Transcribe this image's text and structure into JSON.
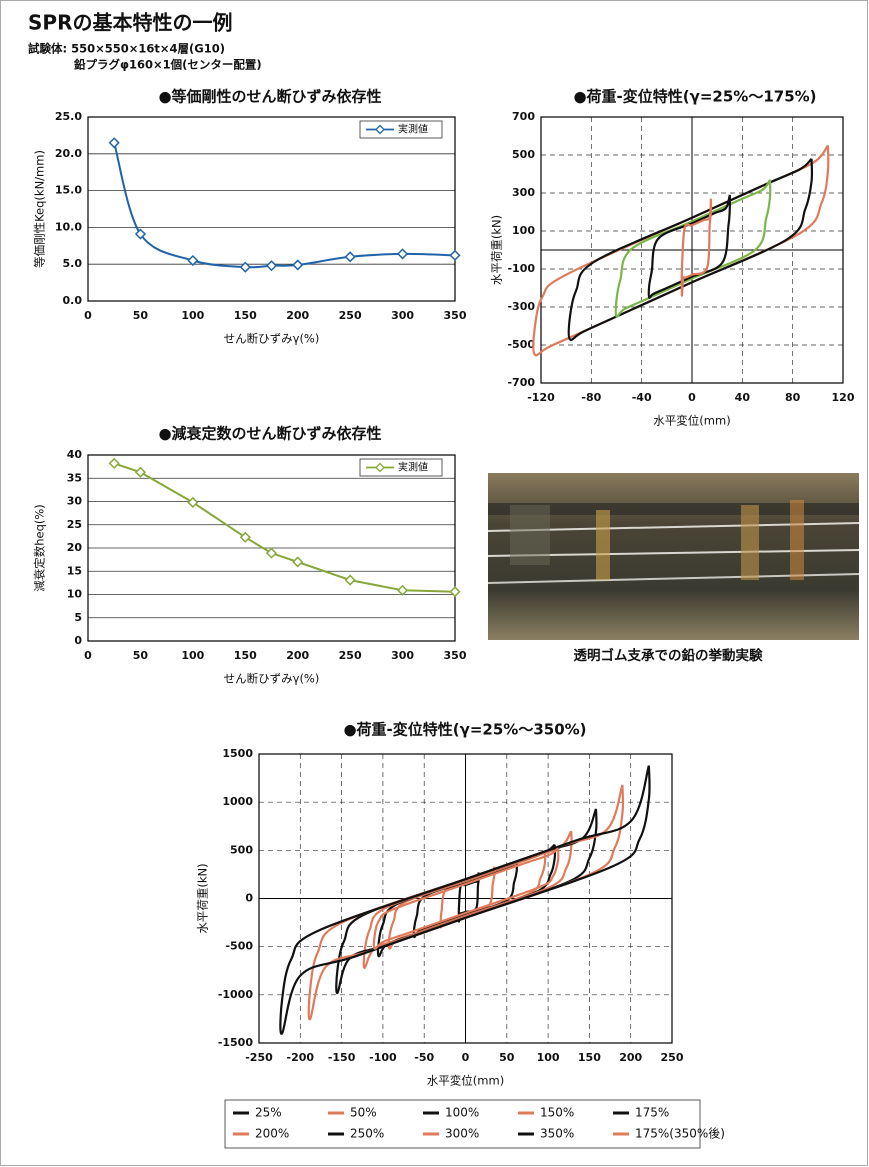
{
  "header": {
    "title": "SPRの基本特性の一例",
    "lines": [
      "試験体: 550×550×16t×4層(G10)",
      "鉛プラグφ160×1個(センター配置)"
    ]
  },
  "photo": {
    "caption": "透明ゴム支承での鉛の挙動実験"
  },
  "chart_data": [
    {
      "type": "line",
      "title": "●等価剛性のせん断ひずみ依存性",
      "xlabel": "せん断ひずみγ(%)",
      "ylabel": "等価剛性Keq(kN/mm)",
      "x": [
        25,
        50,
        100,
        150,
        175,
        200,
        250,
        300,
        350
      ],
      "series": [
        {
          "name": "実測値",
          "color": "#2163a8",
          "values": [
            21.5,
            9.1,
            5.5,
            4.6,
            4.8,
            4.9,
            6.0,
            6.4,
            6.2
          ]
        }
      ],
      "xlim": [
        0,
        350
      ],
      "xticks": [
        0,
        50,
        100,
        150,
        200,
        250,
        300,
        350
      ],
      "ylim": [
        0,
        25
      ],
      "yticks": [
        {
          "value": 0,
          "label": "0.0"
        },
        {
          "value": 5,
          "label": "5.0"
        },
        {
          "value": 10,
          "label": "10.0"
        },
        {
          "value": 15,
          "label": "15.0"
        },
        {
          "value": 20,
          "label": "20.0"
        },
        {
          "value": 25,
          "label": "25.0"
        }
      ],
      "grid": "y",
      "smooth": true,
      "markers": "diamond",
      "legend": "upper right"
    },
    {
      "type": "line",
      "title": "●荷重-変位特性(γ=25%〜175%)",
      "xlabel": "水平変位(mm)",
      "ylabel": "水平荷重(kN)",
      "series": [
        {
          "color": "#e07a5a",
          "x": [
            108,
            108,
            103,
            86,
            0,
            -75,
            -113,
            -125,
            -125,
            -119,
            -100,
            0,
            65,
            97,
            108
          ],
          "values": [
            550,
            413,
            248,
            89,
            -170,
            -395,
            -508,
            -550,
            -413,
            -248,
            -130,
            170,
            364,
            462,
            550
          ]
        },
        {
          "color": "#111111",
          "x": [
            95,
            95,
            90,
            76,
            0,
            -58,
            -87,
            -97,
            -97,
            -92,
            -78,
            0,
            57,
            86,
            95
          ],
          "values": [
            480,
            360,
            216,
            58,
            -170,
            -344,
            -432,
            -470,
            -353,
            -212,
            -63,
            170,
            341,
            426,
            480
          ]
        },
        {
          "color": "#7ab648",
          "x": [
            62,
            62,
            59,
            50,
            0,
            -36,
            -54,
            -60,
            -60,
            -57,
            -48,
            0,
            37,
            56,
            62
          ],
          "values": [
            370,
            278,
            167,
            -1,
            -150,
            -258,
            -312,
            -350,
            -263,
            -158,
            6,
            150,
            261,
            317,
            370
          ]
        },
        {
          "color": "#111111",
          "x": [
            30,
            30,
            29,
            24,
            0,
            -20,
            -31,
            -34,
            -34,
            -32,
            -27,
            0,
            18,
            27,
            30
          ],
          "values": [
            290,
            218,
            131,
            -68,
            -140,
            -200,
            -232,
            -250,
            -188,
            -113,
            58,
            140,
            194,
            221,
            290
          ]
        },
        {
          "color": "#e07a5a",
          "x": [
            15,
            15,
            14,
            12,
            0,
            -5,
            -7,
            -8,
            -8,
            -8,
            -6,
            0,
            9,
            14,
            15
          ],
          "values": [
            270,
            203,
            122,
            -94,
            -130,
            -145,
            -151,
            -240,
            -180,
            -108,
            112,
            130,
            157,
            172,
            270
          ]
        }
      ],
      "xlim": [
        -120,
        120
      ],
      "xticks": [
        -120,
        -80,
        -40,
        0,
        40,
        80,
        120
      ],
      "ylim": [
        -700,
        700
      ],
      "yticks": [
        -700,
        -500,
        -300,
        -100,
        100,
        300,
        500,
        700
      ],
      "grid": "both",
      "zero_lines": true,
      "smooth": true
    },
    {
      "type": "line",
      "title": "●減衰定数のせん断ひずみ依存性",
      "xlabel": "せん断ひずみγ(%)",
      "ylabel": "減衰定数heq(%)",
      "x": [
        25,
        50,
        100,
        150,
        175,
        200,
        250,
        300,
        350
      ],
      "series": [
        {
          "name": "実測値",
          "color": "#86a83a",
          "values": [
            38.2,
            36.3,
            29.8,
            22.3,
            18.9,
            17.0,
            13.1,
            10.9,
            10.6
          ]
        }
      ],
      "xlim": [
        0,
        350
      ],
      "xticks": [
        0,
        50,
        100,
        150,
        200,
        250,
        300,
        350
      ],
      "ylim": [
        0,
        40
      ],
      "yticks": [
        0,
        5,
        10,
        15,
        20,
        25,
        30,
        35,
        40
      ],
      "grid": "y",
      "smooth": false,
      "markers": "diamond",
      "legend": "upper right"
    },
    {
      "type": "line",
      "title": "●荷重-変位特性(γ=25%〜350%)",
      "xlabel": "水平変位(mm)",
      "ylabel": "水平荷重(kN)",
      "series": [
        {
          "name": "25%",
          "color": "#111111",
          "x": [
            16,
            16,
            15,
            13,
            0,
            -5,
            -7,
            -8,
            -8,
            -8,
            -6,
            0,
            10,
            14,
            16
          ],
          "values": [
            270,
            203,
            122,
            -102,
            -140,
            -154,
            -162,
            -240,
            -180,
            -108,
            121,
            140,
            170,
            183,
            270
          ]
        },
        {
          "name": "50%",
          "color": "#e07a5a",
          "x": [
            35,
            35,
            33,
            28,
            0,
            -18,
            -27,
            -30,
            -30,
            -29,
            -24,
            0,
            21,
            32,
            35
          ],
          "values": [
            330,
            248,
            149,
            -76,
            -160,
            -214,
            -241,
            -300,
            -225,
            -135,
            88,
            160,
            223,
            255,
            330
          ]
        },
        {
          "name": "100%",
          "color": "#111111",
          "x": [
            62,
            62,
            59,
            50,
            0,
            -37,
            -56,
            -62,
            -62,
            -59,
            -50,
            0,
            37,
            56,
            62
          ],
          "values": [
            380,
            285,
            171,
            -21,
            -170,
            -282,
            -337,
            -400,
            -300,
            -180,
            21,
            170,
            282,
            337,
            380
          ]
        },
        {
          "name": "150%",
          "color": "#e07a5a",
          "x": [
            96,
            96,
            91,
            77,
            0,
            -55,
            -83,
            -92,
            -92,
            -87,
            -74,
            0,
            58,
            86,
            96
          ],
          "values": [
            480,
            360,
            216,
            50,
            -180,
            -346,
            -428,
            -520,
            -390,
            -234,
            -41,
            180,
            353,
            439,
            480
          ]
        },
        {
          "name": "175%",
          "color": "#111111",
          "x": [
            108,
            108,
            103,
            86,
            0,
            -63,
            -95,
            -105,
            -105,
            -100,
            -84,
            0,
            65,
            97,
            108
          ],
          "values": [
            560,
            420,
            252,
            69,
            -190,
            -379,
            -474,
            -600,
            -450,
            -270,
            -62,
            190,
            384,
            482,
            560
          ]
        },
        {
          "name": "200%",
          "color": "#e07a5a",
          "x": [
            128,
            128,
            122,
            102,
            0,
            -73,
            -110,
            -122,
            -122,
            -116,
            -98,
            0,
            77,
            115,
            128
          ],
          "values": [
            700,
            525,
            315,
            117,
            -190,
            -410,
            -519,
            -720,
            -540,
            -324,
            -103,
            190,
            420,
            536,
            700
          ]
        },
        {
          "name": "250%",
          "color": "#111111",
          "x": [
            158,
            158,
            150,
            126,
            0,
            -93,
            -140,
            -155,
            -155,
            -147,
            -124,
            0,
            95,
            142,
            158
          ],
          "values": [
            930,
            698,
            419,
            179,
            -200,
            -479,
            -619,
            -980,
            -735,
            -441,
            -172,
            200,
            484,
            627,
            930
          ]
        },
        {
          "name": "300%",
          "color": "#e07a5a",
          "x": [
            190,
            190,
            181,
            152,
            0,
            -113,
            -169,
            -188,
            -188,
            -179,
            -150,
            0,
            114,
            171,
            190
          ],
          "values": [
            1180,
            885,
            531,
            256,
            -200,
            -538,
            -708,
            -1250,
            -938,
            -563,
            -251,
            200,
            542,
            713,
            1180
          ]
        },
        {
          "name": "350%",
          "color": "#111111",
          "x": [
            222,
            222,
            211,
            178,
            0,
            -133,
            -200,
            -222,
            -222,
            -211,
            -178,
            0,
            133,
            200,
            222
          ],
          "values": [
            1380,
            1035,
            621,
            333,
            -200,
            -600,
            -800,
            -1400,
            -1050,
            -630,
            -333,
            200,
            600,
            800,
            1380
          ]
        },
        {
          "name": "175%(350%後)",
          "color": "#e07a5a",
          "x": [
            112,
            112,
            106,
            90,
            0,
            -66,
            -99,
            -110,
            -110,
            -105,
            -88,
            0,
            67,
            101,
            112
          ],
          "values": [
            520,
            390,
            234,
            119,
            -150,
            -348,
            -447,
            -520,
            -390,
            -234,
            -114,
            150,
            352,
            452,
            520
          ]
        }
      ],
      "xlim": [
        -250,
        250
      ],
      "xticks": [
        -250,
        -200,
        -150,
        -100,
        -50,
        0,
        50,
        100,
        150,
        200,
        250
      ],
      "ylim": [
        -1500,
        1500
      ],
      "yticks": [
        -1500,
        -1000,
        -500,
        0,
        500,
        1000,
        1500
      ],
      "grid": "both",
      "zero_lines": true,
      "smooth": true,
      "legend": "bottom"
    }
  ]
}
